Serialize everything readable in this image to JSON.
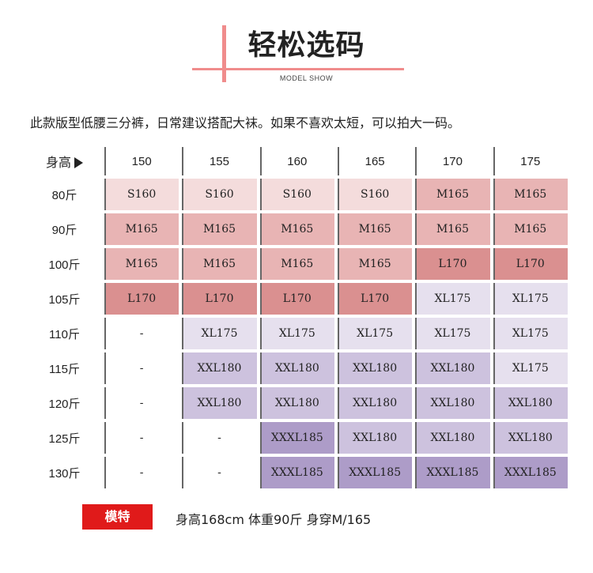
{
  "header": {
    "title": "轻松选码",
    "subtitle": "MODEL SHOW",
    "accent_color": "#f08c8c"
  },
  "description": "此款版型低腰三分裤，日常建议搭配大袜。如果不喜欢太短，可以拍大一码。",
  "table": {
    "corner_label": "身高",
    "heights": [
      "150",
      "155",
      "160",
      "165",
      "170",
      "175"
    ],
    "rows": [
      {
        "weight": "80斤",
        "sizes": [
          "S160",
          "S160",
          "S160",
          "S160",
          "M165",
          "M165"
        ]
      },
      {
        "weight": "90斤",
        "sizes": [
          "M165",
          "M165",
          "M165",
          "M165",
          "M165",
          "M165"
        ]
      },
      {
        "weight": "100斤",
        "sizes": [
          "M165",
          "M165",
          "M165",
          "M165",
          "L170",
          "L170"
        ]
      },
      {
        "weight": "105斤",
        "sizes": [
          "L170",
          "L170",
          "L170",
          "L170",
          "XL175",
          "XL175"
        ]
      },
      {
        "weight": "110斤",
        "sizes": [
          "-",
          "XL175",
          "XL175",
          "XL175",
          "XL175",
          "XL175"
        ]
      },
      {
        "weight": "115斤",
        "sizes": [
          "-",
          "XXL180",
          "XXL180",
          "XXL180",
          "XXL180",
          "XL175"
        ]
      },
      {
        "weight": "120斤",
        "sizes": [
          "-",
          "XXL180",
          "XXL180",
          "XXL180",
          "XXL180",
          "XXL180"
        ]
      },
      {
        "weight": "125斤",
        "sizes": [
          "-",
          "-",
          "XXXL185",
          "XXL180",
          "XXL180",
          "XXL180"
        ]
      },
      {
        "weight": "130斤",
        "sizes": [
          "-",
          "-",
          "XXXL185",
          "XXXL185",
          "XXXL185",
          "XXXL185"
        ]
      }
    ],
    "size_colors": {
      "S160": "#f4dcdc",
      "M165": "#e8b4b4",
      "L170": "#da9090",
      "XL175": "#e6e0ee",
      "XXL180": "#cdc2de",
      "XXXL185": "#ad9cc8",
      "-": "#ffffff"
    }
  },
  "model": {
    "badge_label": "模特",
    "badge_color": "#e01a1a",
    "info": "身高168cm 体重90斤 身穿M/165"
  }
}
